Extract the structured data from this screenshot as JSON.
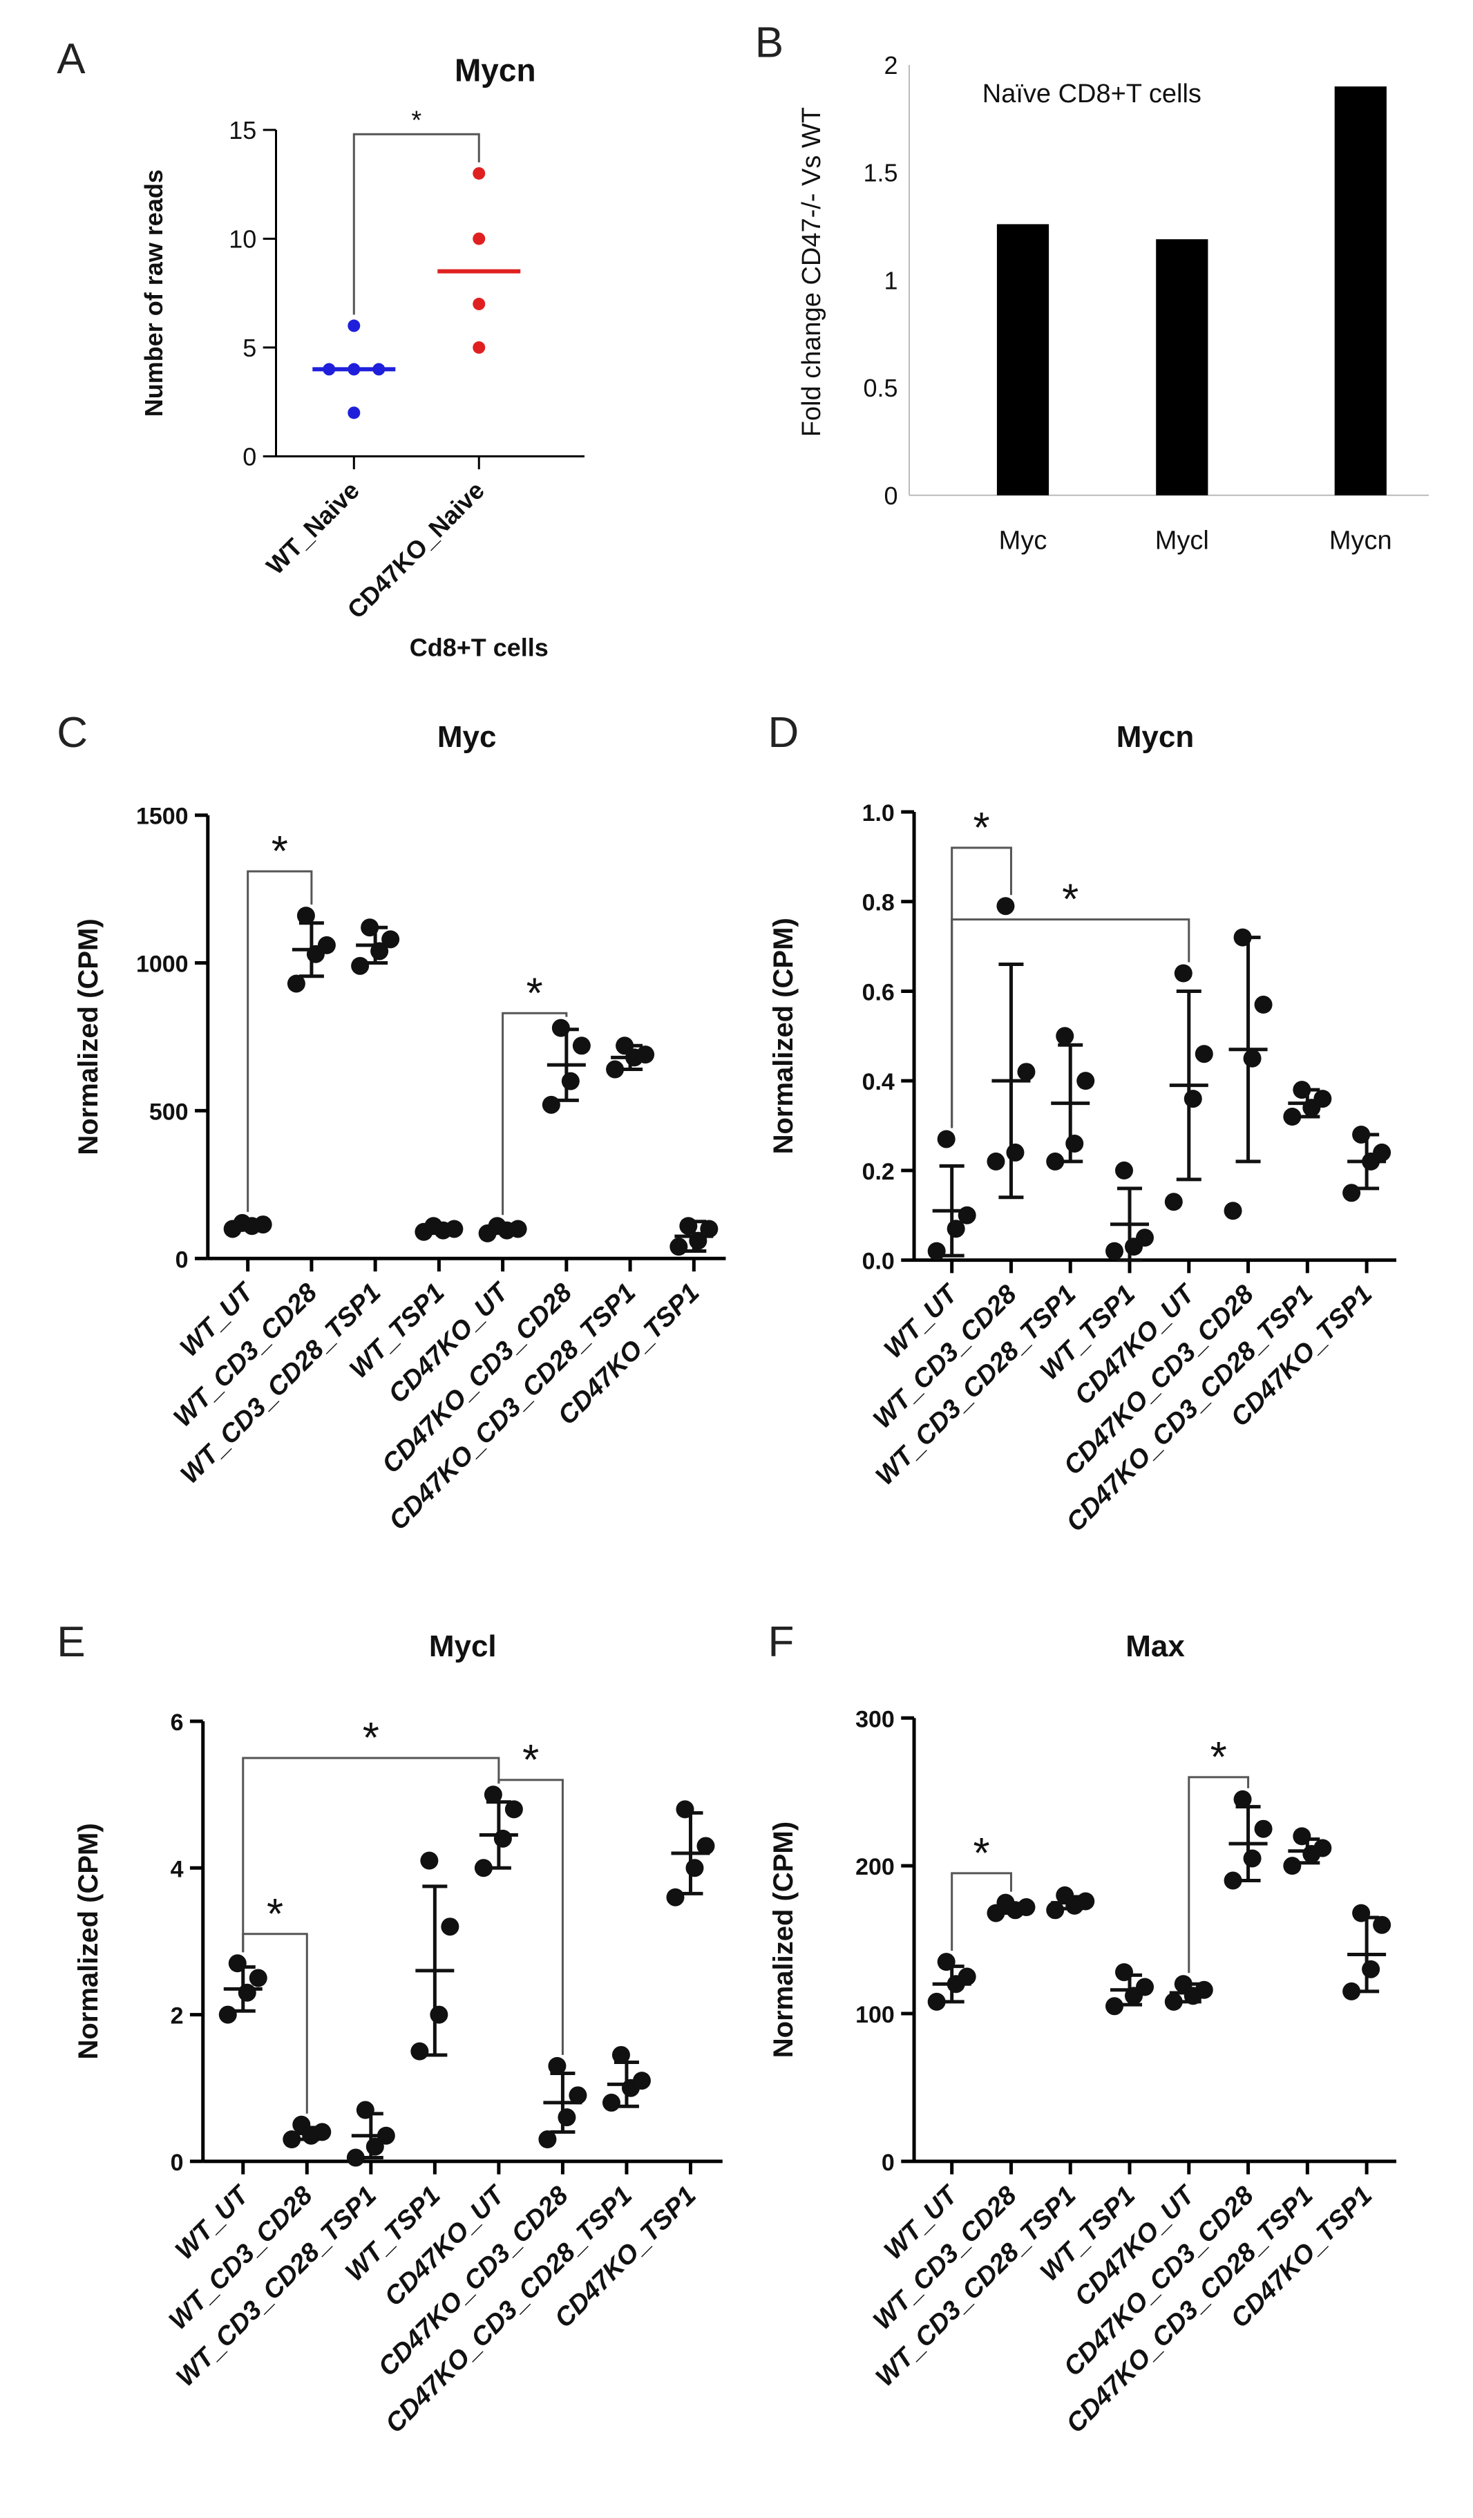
{
  "chart_data": [
    {
      "id": "A",
      "panel_letter": "A",
      "type": "scatter",
      "title": "Mycn",
      "ylabel": "Number of raw reads",
      "xlabel": "Cd8+T cells",
      "ylim": [
        0,
        15
      ],
      "yticks": [
        "0",
        "5",
        "10",
        "15"
      ],
      "categories": [
        "WT_Naive",
        "CD47KO_Naive"
      ],
      "point_colors": [
        "#1f1fdb",
        "#e02020"
      ],
      "points": [
        [
          2,
          4,
          4,
          4,
          6
        ],
        [
          5,
          7,
          10,
          13
        ]
      ],
      "medians": [
        4,
        8.5
      ],
      "significance": [
        {
          "from": 0,
          "to": 1,
          "y": 14.8,
          "label": "*"
        }
      ]
    },
    {
      "id": "B",
      "panel_letter": "B",
      "type": "bar",
      "title": "",
      "annotation": "Naïve CD8+T cells",
      "ylabel": "Fold change CD47-/- Vs WT",
      "xlabel": "",
      "ylim": [
        0,
        2
      ],
      "yticks": [
        "0",
        "0.5",
        "1",
        "1.5",
        "2"
      ],
      "categories": [
        "Myc",
        "Mycl",
        "Mycn"
      ],
      "values": [
        1.26,
        1.19,
        1.9
      ],
      "bar_color": "#000000"
    },
    {
      "id": "C",
      "panel_letter": "C",
      "type": "scatter",
      "title": "Myc",
      "ylabel": "Normalized (CPM)",
      "ylim": [
        0,
        1500
      ],
      "yticks": [
        "0",
        "500",
        "1000",
        "1500"
      ],
      "categories": [
        "WT_UT",
        "WT_CD3_CD28",
        "WT_CD3_CD28_TSP1",
        "WT_TSP1",
        "CD47KO_UT",
        "CD47KO_CD3_CD28",
        "CD47KO_CD3_CD28_TSP1",
        "CD47KO_TSP1"
      ],
      "points": [
        [
          100,
          110,
          115,
          120
        ],
        [
          930,
          1030,
          1060,
          1160
        ],
        [
          990,
          1040,
          1080,
          1120
        ],
        [
          90,
          95,
          100,
          110
        ],
        [
          85,
          95,
          100,
          110
        ],
        [
          520,
          600,
          720,
          780
        ],
        [
          640,
          680,
          690,
          720
        ],
        [
          40,
          60,
          100,
          110
        ]
      ],
      "means": [
        110,
        1045,
        1060,
        100,
        100,
        655,
        680,
        75
      ],
      "sd": [
        10,
        90,
        60,
        10,
        10,
        120,
        40,
        50
      ],
      "significance": [
        {
          "from": 0,
          "to": 1,
          "y": 1310,
          "label": "*"
        },
        {
          "from": 4,
          "to": 5,
          "y": 830,
          "label": "*"
        }
      ]
    },
    {
      "id": "D",
      "panel_letter": "D",
      "type": "scatter",
      "title": "Mycn",
      "ylabel": "Normalized (CPM)",
      "ylim": [
        0,
        1.0
      ],
      "yticks": [
        "0.0",
        "0.2",
        "0.4",
        "0.6",
        "0.8",
        "1.0"
      ],
      "categories": [
        "WT_UT",
        "WT_CD3_CD28",
        "WT_CD3_CD28_TSP1",
        "WT_TSP1",
        "CD47KO_UT",
        "CD47KO_CD3_CD28",
        "CD47KO_CD3_CD28_TSP1",
        "CD47KO_TSP1"
      ],
      "points": [
        [
          0.02,
          0.07,
          0.1,
          0.27
        ],
        [
          0.22,
          0.24,
          0.42,
          0.79
        ],
        [
          0.22,
          0.26,
          0.4,
          0.5
        ],
        [
          0.02,
          0.03,
          0.05,
          0.2
        ],
        [
          0.13,
          0.36,
          0.46,
          0.64
        ],
        [
          0.11,
          0.45,
          0.57,
          0.72
        ],
        [
          0.32,
          0.34,
          0.36,
          0.38
        ],
        [
          0.15,
          0.22,
          0.24,
          0.28
        ]
      ],
      "means": [
        0.11,
        0.4,
        0.35,
        0.08,
        0.39,
        0.47,
        0.35,
        0.22
      ],
      "sd": [
        0.1,
        0.26,
        0.13,
        0.08,
        0.21,
        0.25,
        0.03,
        0.06
      ],
      "significance": [
        {
          "from": 0,
          "to": 1,
          "y": 0.92,
          "label": "*"
        },
        {
          "from": 0,
          "to": 4,
          "y": 0.76,
          "label": "*"
        }
      ]
    },
    {
      "id": "E",
      "panel_letter": "E",
      "type": "scatter",
      "title": "Mycl",
      "ylabel": "Normalized (CPM)",
      "ylim": [
        0,
        6
      ],
      "yticks": [
        "0",
        "2",
        "4",
        "6"
      ],
      "categories": [
        "WT_UT",
        "WT_CD3_CD28",
        "WT_CD3_CD28_TSP1",
        "WT_TSP1",
        "CD47KO_UT",
        "CD47KO_CD3_CD28",
        "CD47KO_CD3_CD28_TSP1",
        "CD47KO_TSP1"
      ],
      "points": [
        [
          2.0,
          2.3,
          2.5,
          2.7
        ],
        [
          0.3,
          0.35,
          0.4,
          0.5
        ],
        [
          0.05,
          0.2,
          0.35,
          0.7
        ],
        [
          1.5,
          2.0,
          3.2,
          4.1
        ],
        [
          4.0,
          4.4,
          4.8,
          5.0
        ],
        [
          0.3,
          0.6,
          0.9,
          1.3
        ],
        [
          0.8,
          1.0,
          1.1,
          1.45
        ],
        [
          3.6,
          4.0,
          4.3,
          4.8
        ]
      ],
      "means": [
        2.35,
        0.38,
        0.35,
        2.6,
        4.45,
        0.8,
        1.05,
        4.2
      ],
      "sd": [
        0.3,
        0.08,
        0.3,
        1.15,
        0.45,
        0.4,
        0.3,
        0.55
      ],
      "significance": [
        {
          "from": 0,
          "to": 1,
          "y": 3.1,
          "label": "*"
        },
        {
          "from": 0,
          "to": 4,
          "y": 5.5,
          "label": "*"
        },
        {
          "from": 4,
          "to": 5,
          "y": 5.2,
          "label": "*"
        }
      ]
    },
    {
      "id": "F",
      "panel_letter": "F",
      "type": "scatter",
      "title": "Max",
      "ylabel": "Normalized (CPM)",
      "ylim": [
        0,
        300
      ],
      "yticks": [
        "0",
        "100",
        "200",
        "300"
      ],
      "categories": [
        "WT_UT",
        "WT_CD3_CD28",
        "WT_CD3_CD28_TSP1",
        "WT_TSP1",
        "CD47KO_UT",
        "CD47KO_CD3_CD28",
        "CD47KO_CD3_CD28_TSP1",
        "CD47KO_TSP1"
      ],
      "points": [
        [
          108,
          120,
          125,
          135
        ],
        [
          168,
          170,
          172,
          175
        ],
        [
          170,
          173,
          176,
          180
        ],
        [
          105,
          112,
          118,
          128
        ],
        [
          108,
          112,
          116,
          120
        ],
        [
          190,
          205,
          225,
          245
        ],
        [
          200,
          208,
          212,
          220
        ],
        [
          115,
          130,
          160,
          168
        ]
      ],
      "means": [
        120,
        171,
        175,
        116,
        114,
        215,
        210,
        140
      ],
      "sd": [
        12,
        3,
        4,
        10,
        6,
        25,
        8,
        25
      ],
      "significance": [
        {
          "from": 0,
          "to": 1,
          "y": 195,
          "label": "*"
        },
        {
          "from": 4,
          "to": 5,
          "y": 260,
          "label": "*"
        }
      ]
    }
  ]
}
